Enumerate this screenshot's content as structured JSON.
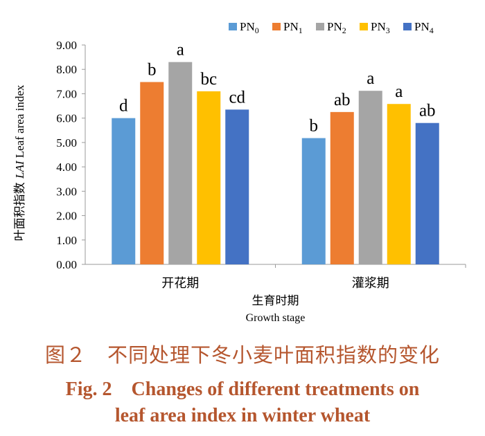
{
  "chart_data": {
    "type": "bar",
    "categories": [
      "开花期",
      "灌浆期"
    ],
    "series": [
      {
        "name": "PN0",
        "base": "PN",
        "sub": "0",
        "values": [
          6.0,
          5.18
        ],
        "labels": [
          "d",
          "b"
        ]
      },
      {
        "name": "PN1",
        "base": "PN",
        "sub": "1",
        "values": [
          7.48,
          6.25
        ],
        "labels": [
          "b",
          "ab"
        ]
      },
      {
        "name": "PN2",
        "base": "PN",
        "sub": "2",
        "values": [
          8.3,
          7.12
        ],
        "labels": [
          "a",
          "a"
        ]
      },
      {
        "name": "PN3",
        "base": "PN",
        "sub": "3",
        "values": [
          7.1,
          6.58
        ],
        "labels": [
          "bc",
          "a"
        ]
      },
      {
        "name": "PN4",
        "base": "PN",
        "sub": "4",
        "values": [
          6.35,
          5.8
        ],
        "labels": [
          "cd",
          "ab"
        ]
      }
    ],
    "yticks": [
      "0.00",
      "1.00",
      "2.00",
      "3.00",
      "4.00",
      "5.00",
      "6.00",
      "7.00",
      "8.00",
      "9.00"
    ],
    "ylim": [
      0,
      9
    ],
    "ylabel_cn": "叶面积指数",
    "ylabel_lai": "LAI",
    "ylabel_en": "Leaf area index",
    "xlabel_cn": "生育时期",
    "xlabel_en": "Growth stage",
    "legend_position": "top-right",
    "grid": false
  },
  "colors": [
    "#5b9bd5",
    "#ed7d31",
    "#a5a5a5",
    "#ffc000",
    "#4472c4"
  ],
  "caption": {
    "cn": "图２　不同处理下冬小麦叶面积指数的变化",
    "en_line1": "Fig. 2　Changes of different treatments on",
    "en_line2": "leaf area index in winter wheat"
  }
}
